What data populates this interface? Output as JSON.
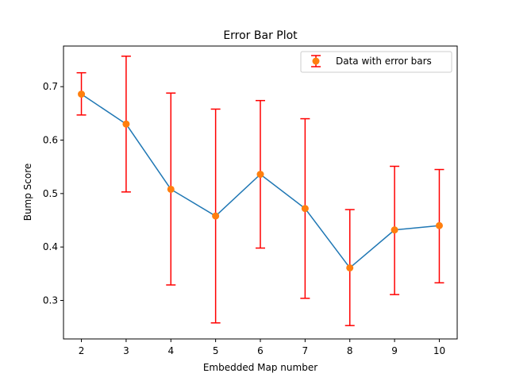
{
  "chart_data": {
    "type": "line",
    "title": "Error Bar Plot",
    "xlabel": "Embedded Map number",
    "ylabel": "Bump Score",
    "x": [
      2,
      3,
      4,
      5,
      6,
      7,
      8,
      9,
      10
    ],
    "series": [
      {
        "name": "Data with error bars",
        "values": [
          0.686,
          0.63,
          0.508,
          0.458,
          0.536,
          0.472,
          0.361,
          0.432,
          0.44
        ],
        "error_lower": [
          0.647,
          0.503,
          0.329,
          0.258,
          0.398,
          0.304,
          0.253,
          0.311,
          0.333
        ],
        "error_upper": [
          0.726,
          0.757,
          0.688,
          0.658,
          0.674,
          0.64,
          0.47,
          0.551,
          0.545
        ],
        "line_color": "#1f77b4",
        "marker_color": "#ff7f0e",
        "errorbar_color": "#ff0000"
      }
    ],
    "xticks": [
      "2",
      "3",
      "4",
      "5",
      "6",
      "7",
      "8",
      "9",
      "10"
    ],
    "yticks": [
      "0.3",
      "0.4",
      "0.5",
      "0.6",
      "0.7"
    ],
    "ytick_values": [
      0.3,
      0.4,
      0.5,
      0.6,
      0.7
    ],
    "xlim": [
      1.6,
      10.4
    ],
    "ylim": [
      0.228,
      0.776
    ],
    "grid": false,
    "legend_position": "top-right"
  }
}
